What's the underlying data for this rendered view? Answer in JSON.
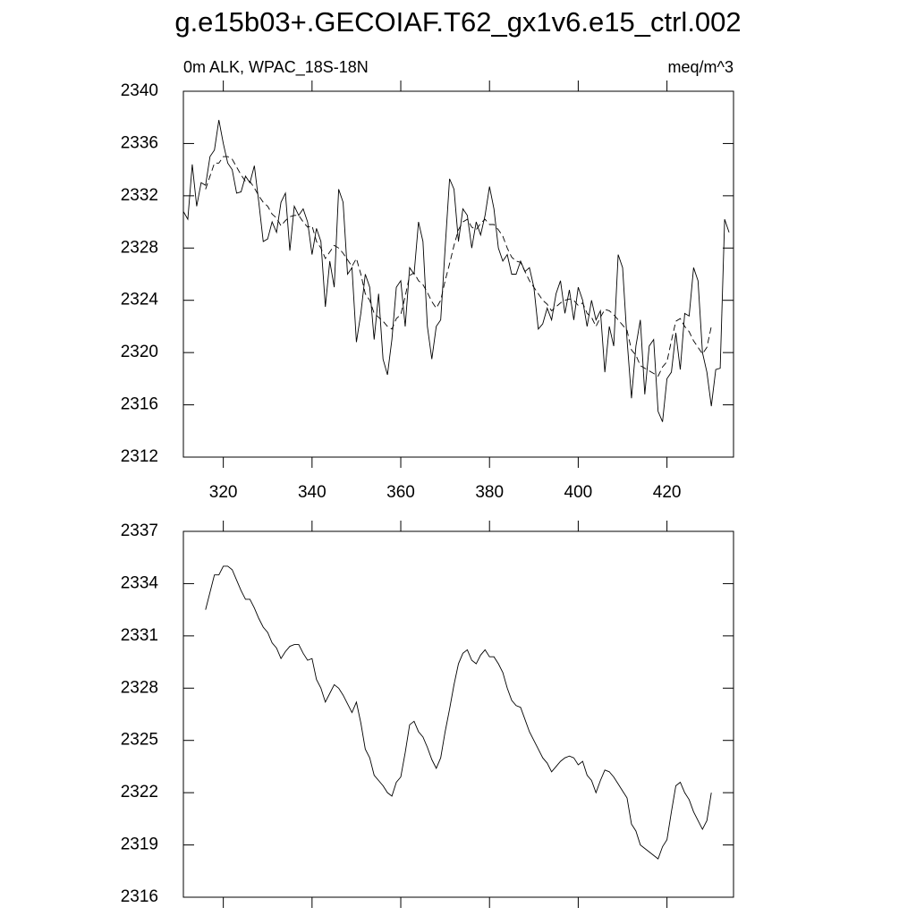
{
  "title": "g.e15b03+.GECOIAF.T62_gx1v6.e15_ctrl.002",
  "chart_data": [
    {
      "type": "line",
      "subtitle": "0m ALK, WPAC_18S-18N",
      "units": "meq/m^3",
      "xlim": [
        311,
        435
      ],
      "xticks": [
        320,
        340,
        360,
        380,
        400,
        420
      ],
      "ylim": [
        2312,
        2340
      ],
      "yticks": [
        2312,
        2316,
        2320,
        2324,
        2328,
        2332,
        2336,
        2340
      ],
      "show_xtick_labels": true,
      "series": [
        {
          "color": "#000000",
          "dashed": false,
          "x": [
            311,
            312,
            313,
            314,
            315,
            316,
            317,
            318,
            319,
            320,
            321,
            322,
            323,
            324,
            325,
            326,
            327,
            328,
            329,
            330,
            331,
            332,
            333,
            334,
            335,
            336,
            337,
            338,
            339,
            340,
            341,
            342,
            343,
            344,
            345,
            346,
            347,
            348,
            349,
            350,
            351,
            352,
            353,
            354,
            355,
            356,
            357,
            358,
            359,
            360,
            361,
            362,
            363,
            364,
            365,
            366,
            367,
            368,
            369,
            370,
            371,
            372,
            373,
            374,
            375,
            376,
            377,
            378,
            379,
            380,
            381,
            382,
            383,
            384,
            385,
            386,
            387,
            388,
            389,
            390,
            391,
            392,
            393,
            394,
            395,
            396,
            397,
            398,
            399,
            400,
            401,
            402,
            403,
            404,
            405,
            406,
            407,
            408,
            409,
            410,
            411,
            412,
            413,
            414,
            415,
            416,
            417,
            418,
            419,
            420,
            421,
            422,
            423,
            424,
            425,
            426,
            427,
            428,
            429,
            430,
            431,
            432,
            433,
            434
          ],
          "values": [
            2330.8,
            2330.2,
            2334.4,
            2331.2,
            2333,
            2332.8,
            2335,
            2335.5,
            2337.8,
            2336,
            2334.5,
            2334,
            2332.2,
            2332.3,
            2333.5,
            2333,
            2334.3,
            2331.5,
            2328.5,
            2328.7,
            2330,
            2329.2,
            2331.5,
            2332.2,
            2327.8,
            2331.2,
            2330.5,
            2331,
            2330,
            2327.5,
            2329.5,
            2328.5,
            2323.5,
            2327,
            2325,
            2332.5,
            2331.5,
            2326,
            2326.5,
            2320.8,
            2323,
            2326,
            2325,
            2321,
            2324.5,
            2319.5,
            2318.3,
            2321,
            2325,
            2325.5,
            2322,
            2326.5,
            2326,
            2330,
            2328.5,
            2322,
            2319.5,
            2322,
            2322.5,
            2328,
            2333.3,
            2332.5,
            2328.5,
            2331,
            2330.5,
            2328,
            2330,
            2329,
            2330.5,
            2332.7,
            2331,
            2328,
            2327,
            2327.5,
            2326,
            2326,
            2327,
            2326.2,
            2326.5,
            2325,
            2321.8,
            2322.2,
            2323.4,
            2322.5,
            2324.5,
            2325.5,
            2323,
            2324.8,
            2322.5,
            2325,
            2324,
            2322,
            2324,
            2322.5,
            2323.2,
            2318.5,
            2322,
            2320.5,
            2327.5,
            2326.5,
            2321,
            2316.5,
            2320.5,
            2322.5,
            2316.8,
            2320.5,
            2321,
            2315.5,
            2314.7,
            2318,
            2318.5,
            2321.5,
            2318.7,
            2323,
            2322.8,
            2326.5,
            2325.5,
            2320,
            2318.5,
            2315.9,
            2318.7,
            2318.8,
            2330.2,
            2329.2
          ]
        },
        {
          "color": "#000000",
          "dashed": true,
          "x": [
            316,
            317,
            318,
            319,
            320,
            321,
            322,
            323,
            324,
            325,
            326,
            327,
            328,
            329,
            330,
            331,
            332,
            333,
            334,
            335,
            336,
            337,
            338,
            339,
            340,
            341,
            342,
            343,
            344,
            345,
            346,
            347,
            348,
            349,
            350,
            351,
            352,
            353,
            354,
            355,
            356,
            357,
            358,
            359,
            360,
            361,
            362,
            363,
            364,
            365,
            366,
            367,
            368,
            369,
            370,
            371,
            372,
            373,
            374,
            375,
            376,
            377,
            378,
            379,
            380,
            381,
            382,
            383,
            384,
            385,
            386,
            387,
            388,
            389,
            390,
            391,
            392,
            393,
            394,
            395,
            396,
            397,
            398,
            399,
            400,
            401,
            402,
            403,
            404,
            405,
            406,
            407,
            408,
            409,
            410,
            411,
            412,
            413,
            414,
            415,
            416,
            417,
            418,
            419,
            420,
            421,
            422,
            423,
            424,
            425,
            426,
            427,
            428,
            429,
            430
          ],
          "values": [
            2332.5,
            2333.5,
            2334.5,
            2334.5,
            2335,
            2335,
            2334.8,
            2334.2,
            2333.6,
            2333.1,
            2333.1,
            2332.6,
            2332,
            2331.5,
            2331.2,
            2330.6,
            2330.3,
            2329.7,
            2330.1,
            2330.4,
            2330.5,
            2330.5,
            2330,
            2329.6,
            2329.7,
            2328.5,
            2328,
            2327.2,
            2327.7,
            2328.2,
            2328,
            2327.6,
            2327.1,
            2326.6,
            2327.2,
            2326,
            2324.5,
            2324,
            2323,
            2322.7,
            2322.4,
            2322,
            2321.8,
            2322.6,
            2322.9,
            2324.3,
            2325.9,
            2326.1,
            2325.5,
            2325.2,
            2324.6,
            2323.9,
            2323.4,
            2324,
            2325.5,
            2326.8,
            2328.2,
            2329.4,
            2330,
            2330.2,
            2329.6,
            2329.4,
            2329.9,
            2330.2,
            2329.8,
            2329.8,
            2329.4,
            2328.9,
            2328,
            2327.3,
            2327,
            2326.9,
            2326.2,
            2325.5,
            2325,
            2324.5,
            2324,
            2323.7,
            2323.2,
            2323.5,
            2323.8,
            2324,
            2324.1,
            2324,
            2323.6,
            2323.8,
            2323,
            2322.7,
            2322,
            2322.7,
            2323.3,
            2323.2,
            2322.9,
            2322.5,
            2322.1,
            2321.7,
            2320.2,
            2319.8,
            2319,
            2318.8,
            2318.6,
            2318.4,
            2318.2,
            2318.9,
            2319.3,
            2320.9,
            2322.4,
            2322.6,
            2322,
            2321.6,
            2320.9,
            2320.4,
            2319.9,
            2320.4,
            2322
          ]
        }
      ]
    },
    {
      "type": "line",
      "xlim": [
        311,
        435
      ],
      "xticks": [
        320,
        340,
        360,
        380,
        400,
        420
      ],
      "ylim": [
        2316,
        2337
      ],
      "yticks": [
        2316,
        2319,
        2322,
        2325,
        2328,
        2331,
        2334,
        2337
      ],
      "show_xtick_labels": false,
      "series": [
        {
          "color": "#000000",
          "dashed": false,
          "x": [
            316,
            317,
            318,
            319,
            320,
            321,
            322,
            323,
            324,
            325,
            326,
            327,
            328,
            329,
            330,
            331,
            332,
            333,
            334,
            335,
            336,
            337,
            338,
            339,
            340,
            341,
            342,
            343,
            344,
            345,
            346,
            347,
            348,
            349,
            350,
            351,
            352,
            353,
            354,
            355,
            356,
            357,
            358,
            359,
            360,
            361,
            362,
            363,
            364,
            365,
            366,
            367,
            368,
            369,
            370,
            371,
            372,
            373,
            374,
            375,
            376,
            377,
            378,
            379,
            380,
            381,
            382,
            383,
            384,
            385,
            386,
            387,
            388,
            389,
            390,
            391,
            392,
            393,
            394,
            395,
            396,
            397,
            398,
            399,
            400,
            401,
            402,
            403,
            404,
            405,
            406,
            407,
            408,
            409,
            410,
            411,
            412,
            413,
            414,
            415,
            416,
            417,
            418,
            419,
            420,
            421,
            422,
            423,
            424,
            425,
            426,
            427,
            428,
            429,
            430
          ],
          "values": [
            2332.5,
            2333.5,
            2334.5,
            2334.5,
            2335,
            2335,
            2334.8,
            2334.2,
            2333.6,
            2333.1,
            2333.1,
            2332.6,
            2332,
            2331.5,
            2331.2,
            2330.6,
            2330.3,
            2329.7,
            2330.1,
            2330.4,
            2330.5,
            2330.5,
            2330,
            2329.6,
            2329.7,
            2328.5,
            2328,
            2327.2,
            2327.7,
            2328.2,
            2328,
            2327.6,
            2327.1,
            2326.6,
            2327.2,
            2326,
            2324.5,
            2324,
            2323,
            2322.7,
            2322.4,
            2322,
            2321.8,
            2322.6,
            2322.9,
            2324.3,
            2325.9,
            2326.1,
            2325.5,
            2325.2,
            2324.6,
            2323.9,
            2323.4,
            2324,
            2325.5,
            2326.8,
            2328.2,
            2329.4,
            2330,
            2330.2,
            2329.6,
            2329.4,
            2329.9,
            2330.2,
            2329.8,
            2329.8,
            2329.4,
            2328.9,
            2328,
            2327.3,
            2327,
            2326.9,
            2326.2,
            2325.5,
            2325,
            2324.5,
            2324,
            2323.7,
            2323.2,
            2323.5,
            2323.8,
            2324,
            2324.1,
            2324,
            2323.6,
            2323.8,
            2323,
            2322.7,
            2322,
            2322.7,
            2323.3,
            2323.2,
            2322.9,
            2322.5,
            2322.1,
            2321.7,
            2320.2,
            2319.8,
            2319,
            2318.8,
            2318.6,
            2318.4,
            2318.2,
            2318.9,
            2319.3,
            2320.9,
            2322.4,
            2322.6,
            2322,
            2321.6,
            2320.9,
            2320.4,
            2319.9,
            2320.4,
            2322
          ]
        }
      ]
    }
  ]
}
